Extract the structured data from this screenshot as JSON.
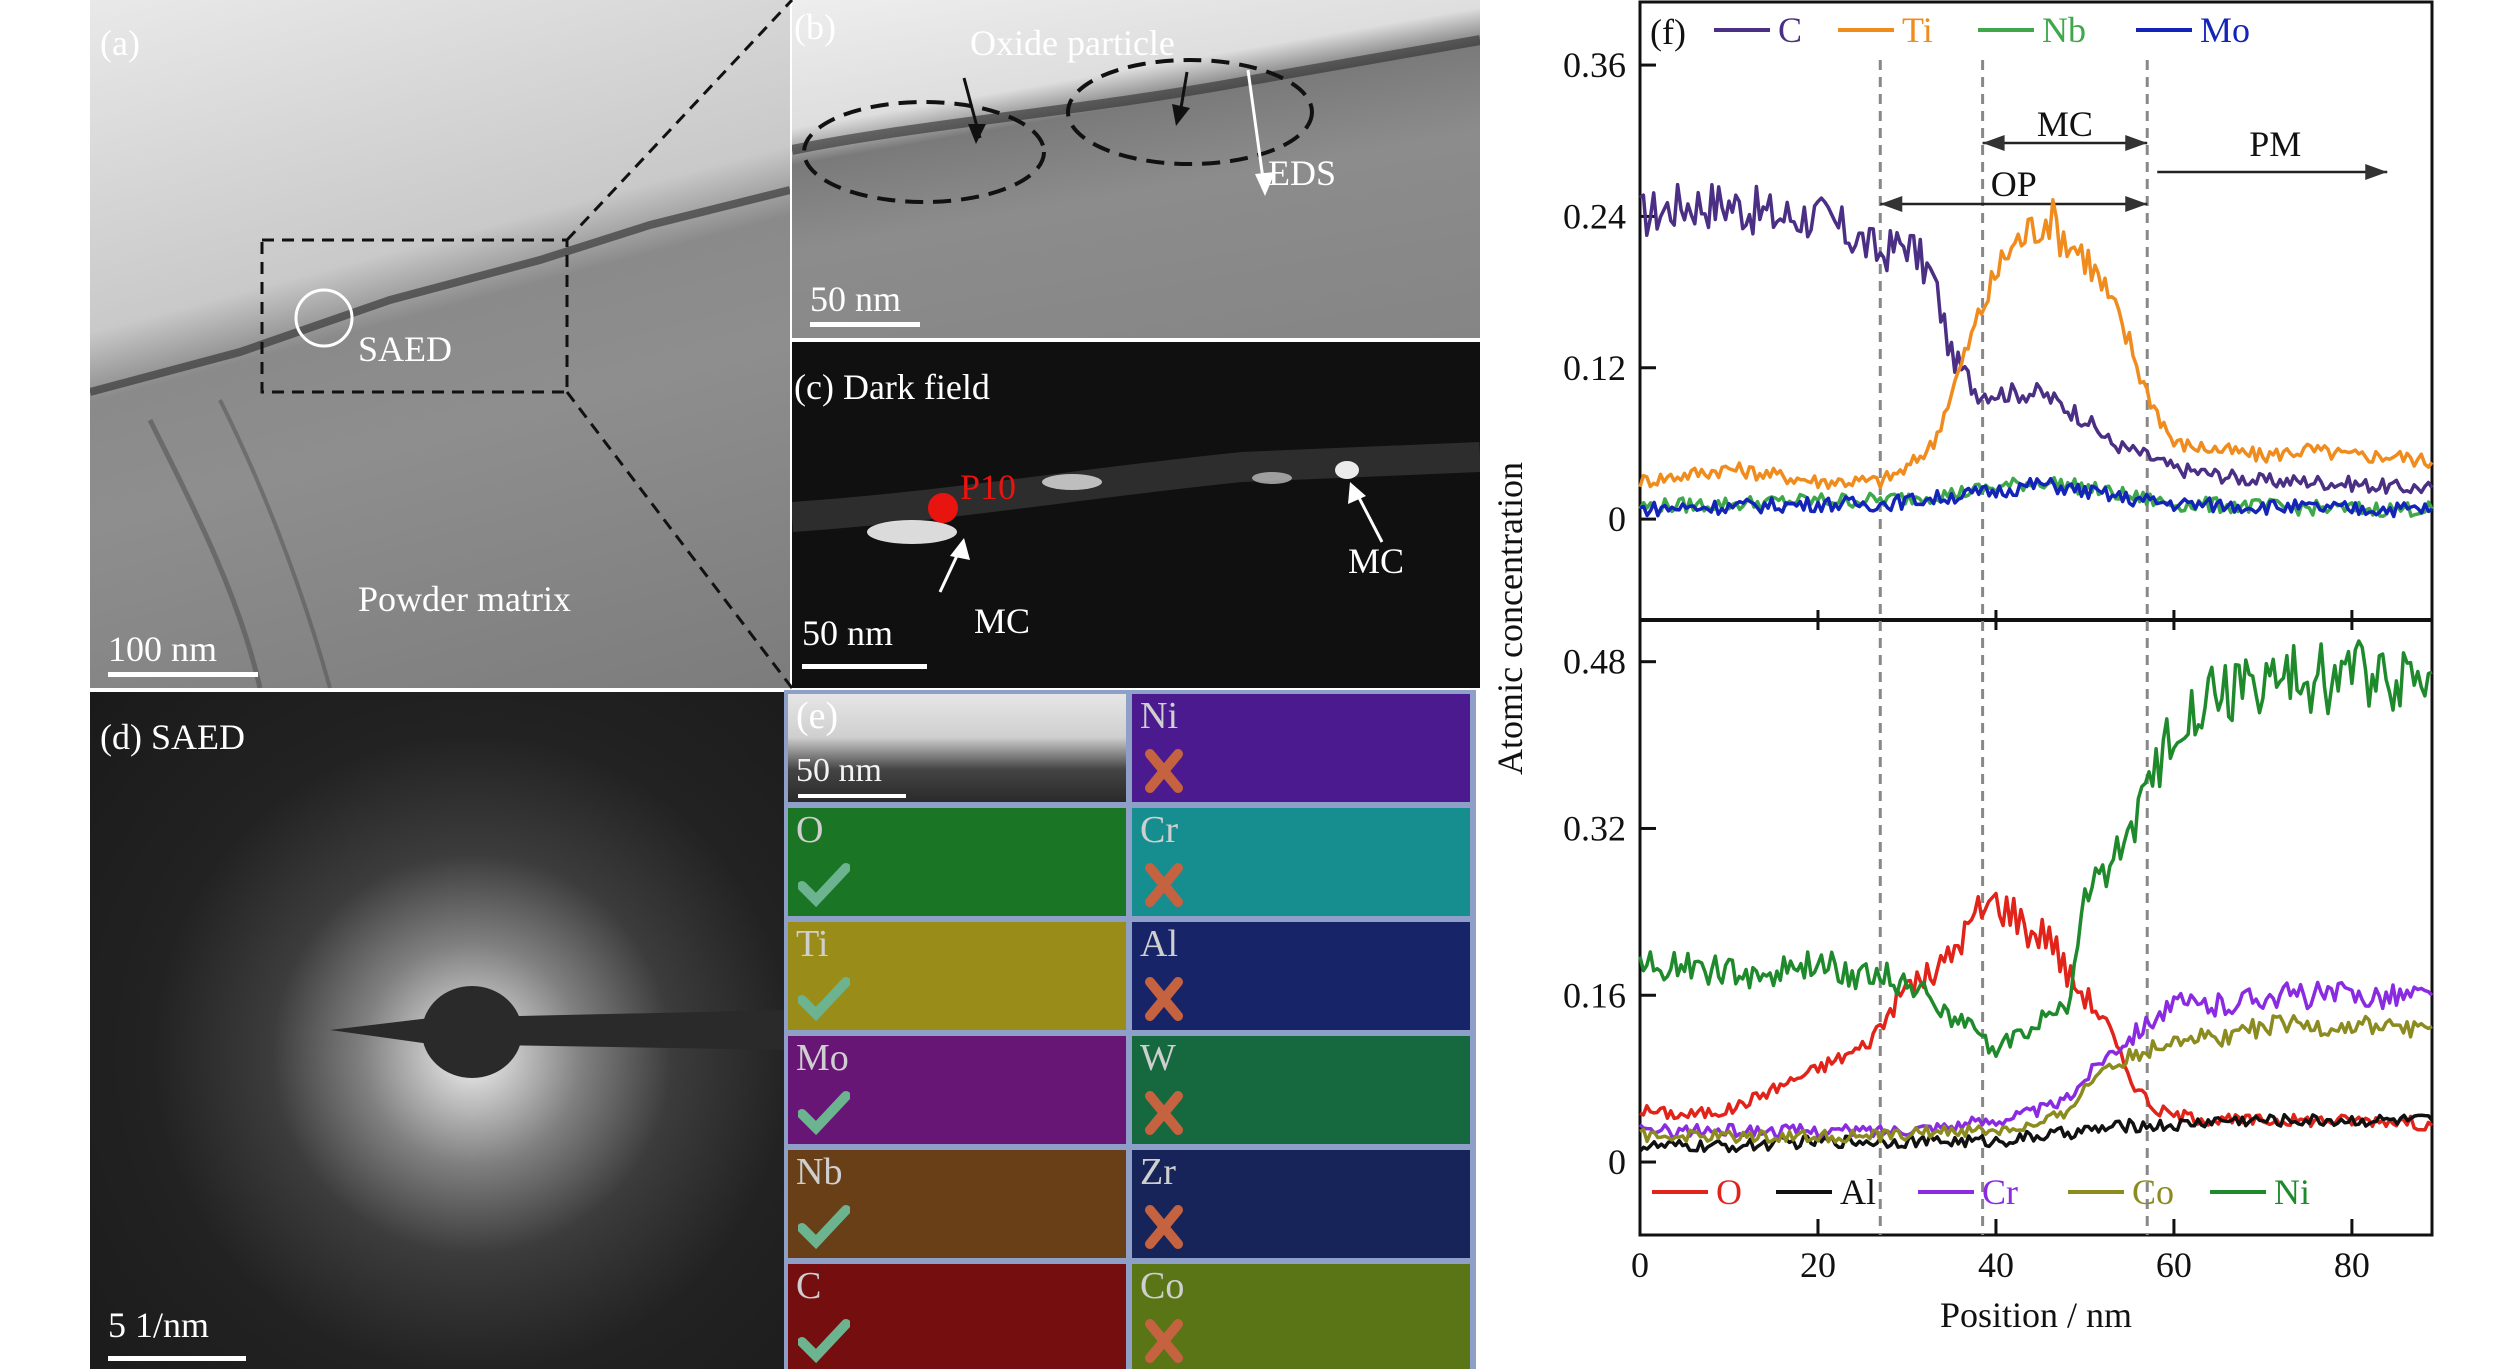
{
  "panels": {
    "a": {
      "tag": "(a)",
      "saed": "SAED",
      "matrix": "Powder matrix",
      "scale": "100 nm"
    },
    "b": {
      "tag": "(b)",
      "oxide": "Oxide particle",
      "eds": "EDS",
      "scale": "50 nm"
    },
    "c": {
      "tag": "(c) Dark field",
      "p10": "P10",
      "mc_left": "MC",
      "mc_right": "MC",
      "scale": "50 nm"
    },
    "d": {
      "tag": "(d) SAED",
      "scale": "5 1/nm"
    },
    "e": {
      "tag": "(e)",
      "scale": "50 nm",
      "maps": [
        {
          "element": "Ni",
          "present": false,
          "color": "#5a1fa8"
        },
        {
          "element": "O",
          "present": true,
          "color": "#1f8a2a"
        },
        {
          "element": "Cr",
          "present": false,
          "color": "#1aa7a8"
        },
        {
          "element": "Ti",
          "present": true,
          "color": "#b5a51c"
        },
        {
          "element": "Al",
          "present": false,
          "color": "#1c2a7a"
        },
        {
          "element": "Mo",
          "present": true,
          "color": "#7a1a8a"
        },
        {
          "element": "W",
          "present": false,
          "color": "#1a7a4a"
        },
        {
          "element": "Nb",
          "present": true,
          "color": "#7a4a1a"
        },
        {
          "element": "Zr",
          "present": false,
          "color": "#1a2a6a"
        },
        {
          "element": "C",
          "present": true,
          "color": "#8a1010"
        },
        {
          "element": "Co",
          "present": false,
          "color": "#6a8a1a"
        }
      ]
    },
    "f": {
      "tag": "(f)"
    }
  },
  "chart_data": {
    "type": "line",
    "xlabel": "Position / nm",
    "ylabel": "Atomic concentration",
    "xlim": [
      0,
      89
    ],
    "xticks": [
      "0",
      "20",
      "40",
      "60",
      "80"
    ],
    "region_boundaries": [
      27,
      38.5,
      57
    ],
    "region_labels": {
      "mc": "MC",
      "op": "OP",
      "pm": "PM"
    },
    "top": {
      "ylim": [
        -0.08,
        0.41
      ],
      "yticks": [
        "0",
        "0.12",
        "0.24",
        "0.36"
      ],
      "legend": [
        {
          "name": "C",
          "color": "#4b2f84"
        },
        {
          "name": "Ti",
          "color": "#f08c1e"
        },
        {
          "name": "Nb",
          "color": "#3fa84a"
        },
        {
          "name": "Mo",
          "color": "#1424b8"
        }
      ],
      "series": [
        {
          "name": "C",
          "x": [
            0,
            5,
            10,
            15,
            20,
            25,
            27,
            30,
            33,
            35,
            38,
            41,
            45,
            50,
            53,
            57,
            60,
            65,
            70,
            75,
            80,
            85,
            89
          ],
          "values": [
            0.24,
            0.25,
            0.25,
            0.24,
            0.24,
            0.22,
            0.21,
            0.22,
            0.19,
            0.13,
            0.1,
            0.1,
            0.1,
            0.08,
            0.06,
            0.05,
            0.04,
            0.035,
            0.03,
            0.03,
            0.028,
            0.025,
            0.025
          ]
        },
        {
          "name": "Ti",
          "x": [
            0,
            5,
            10,
            15,
            20,
            25,
            27,
            30,
            33,
            35,
            38,
            41,
            44,
            46,
            48,
            50,
            53,
            55,
            57,
            60,
            65,
            70,
            75,
            80,
            85,
            89
          ],
          "values": [
            0.03,
            0.035,
            0.04,
            0.035,
            0.03,
            0.03,
            0.03,
            0.04,
            0.06,
            0.1,
            0.16,
            0.21,
            0.23,
            0.24,
            0.22,
            0.21,
            0.17,
            0.14,
            0.1,
            0.06,
            0.055,
            0.05,
            0.055,
            0.05,
            0.05,
            0.045
          ]
        },
        {
          "name": "Nb",
          "x": [
            0,
            10,
            20,
            27,
            35,
            40,
            45,
            50,
            55,
            60,
            70,
            80,
            89
          ],
          "values": [
            0.01,
            0.012,
            0.015,
            0.015,
            0.02,
            0.025,
            0.03,
            0.025,
            0.018,
            0.012,
            0.01,
            0.008,
            0.008
          ]
        },
        {
          "name": "Mo",
          "x": [
            0,
            10,
            20,
            27,
            35,
            40,
            45,
            50,
            55,
            60,
            70,
            80,
            89
          ],
          "values": [
            0.008,
            0.01,
            0.012,
            0.012,
            0.018,
            0.022,
            0.028,
            0.022,
            0.016,
            0.012,
            0.01,
            0.008,
            0.008
          ]
        }
      ]
    },
    "bottom": {
      "ylim": [
        -0.07,
        0.52
      ],
      "yticks": [
        "0",
        "0.16",
        "0.32",
        "0.48"
      ],
      "legend": [
        {
          "name": "O",
          "color": "#e2231a"
        },
        {
          "name": "Al",
          "color": "#111111"
        },
        {
          "name": "Cr",
          "color": "#8a2be2"
        },
        {
          "name": "Co",
          "color": "#8b8b1f"
        },
        {
          "name": "Ni",
          "color": "#1f8a2c"
        }
      ],
      "series": [
        {
          "name": "O",
          "x": [
            0,
            5,
            10,
            15,
            20,
            25,
            27,
            30,
            33,
            35,
            38,
            40,
            42,
            44,
            46,
            48,
            50,
            52,
            54,
            56,
            58,
            60,
            65,
            70,
            75,
            80,
            85,
            89
          ],
          "values": [
            0.05,
            0.045,
            0.05,
            0.07,
            0.09,
            0.11,
            0.13,
            0.17,
            0.18,
            0.2,
            0.24,
            0.25,
            0.24,
            0.22,
            0.22,
            0.18,
            0.16,
            0.14,
            0.1,
            0.07,
            0.05,
            0.045,
            0.04,
            0.04,
            0.04,
            0.04,
            0.04,
            0.035
          ]
        },
        {
          "name": "Al",
          "x": [
            0,
            10,
            20,
            27,
            35,
            40,
            45,
            50,
            55,
            60,
            65,
            70,
            80,
            89
          ],
          "values": [
            0.015,
            0.015,
            0.02,
            0.02,
            0.02,
            0.02,
            0.025,
            0.03,
            0.035,
            0.035,
            0.04,
            0.04,
            0.04,
            0.04
          ]
        },
        {
          "name": "Cr",
          "x": [
            0,
            10,
            20,
            27,
            35,
            40,
            45,
            48,
            50,
            52,
            55,
            58,
            60,
            65,
            70,
            75,
            80,
            85,
            89
          ],
          "values": [
            0.03,
            0.03,
            0.03,
            0.03,
            0.035,
            0.04,
            0.05,
            0.06,
            0.08,
            0.1,
            0.12,
            0.14,
            0.15,
            0.15,
            0.16,
            0.16,
            0.16,
            0.16,
            0.16
          ]
        },
        {
          "name": "Co",
          "x": [
            0,
            10,
            20,
            27,
            35,
            40,
            45,
            48,
            50,
            52,
            55,
            58,
            60,
            65,
            70,
            75,
            80,
            85,
            89
          ],
          "values": [
            0.025,
            0.025,
            0.025,
            0.025,
            0.03,
            0.03,
            0.035,
            0.05,
            0.07,
            0.09,
            0.1,
            0.11,
            0.12,
            0.12,
            0.13,
            0.13,
            0.13,
            0.13,
            0.13
          ]
        },
        {
          "name": "Ni",
          "x": [
            0,
            5,
            10,
            15,
            20,
            25,
            27,
            30,
            33,
            35,
            38,
            40,
            42,
            44,
            46,
            48,
            50,
            52,
            54,
            56,
            58,
            60,
            62,
            65,
            70,
            75,
            80,
            85,
            89
          ],
          "values": [
            0.19,
            0.19,
            0.18,
            0.18,
            0.19,
            0.18,
            0.18,
            0.17,
            0.16,
            0.14,
            0.12,
            0.11,
            0.12,
            0.13,
            0.14,
            0.15,
            0.25,
            0.28,
            0.3,
            0.33,
            0.37,
            0.42,
            0.44,
            0.45,
            0.46,
            0.46,
            0.47,
            0.47,
            0.47
          ]
        }
      ]
    }
  }
}
